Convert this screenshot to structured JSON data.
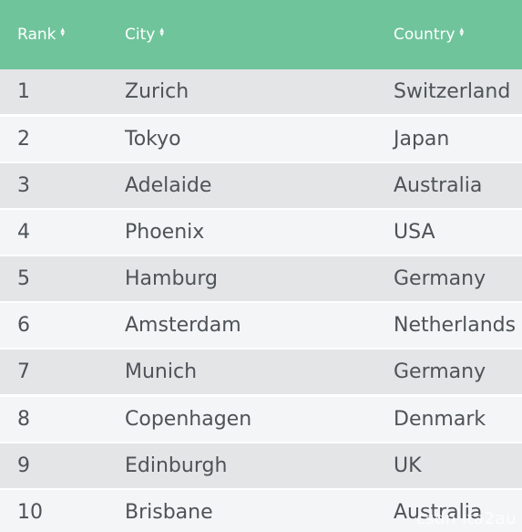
{
  "colors": {
    "header_bg": "#6fc49b",
    "row_odd": "#e4e5e6",
    "row_even": "#f4f5f6",
    "cell_text": "#4d5358"
  },
  "table": {
    "headers": [
      {
        "label": "Rank",
        "icon": "sort-arrows-icon"
      },
      {
        "label": "City",
        "icon": "sort-arrows-icon"
      },
      {
        "label": "Country",
        "icon": "sort-arrows-icon"
      }
    ],
    "rows": [
      {
        "rank": "1",
        "city": "Zurich",
        "country": "Switzerland"
      },
      {
        "rank": "2",
        "city": "Tokyo",
        "country": "Japan"
      },
      {
        "rank": "3",
        "city": "Adelaide",
        "country": "Australia"
      },
      {
        "rank": "4",
        "city": "Phoenix",
        "country": "USA"
      },
      {
        "rank": "5",
        "city": "Hamburg",
        "country": "Germany"
      },
      {
        "rank": "6",
        "city": "Amsterdam",
        "country": "Netherlands"
      },
      {
        "rank": "7",
        "city": "Munich",
        "country": "Germany"
      },
      {
        "rank": "8",
        "city": "Copenhagen",
        "country": "Denmark"
      },
      {
        "rank": "9",
        "city": "Edinburgh",
        "country": "UK"
      },
      {
        "rank": "10",
        "city": "Brisbane",
        "country": "Australia"
      }
    ]
  },
  "watermark": "csdn ita2au"
}
